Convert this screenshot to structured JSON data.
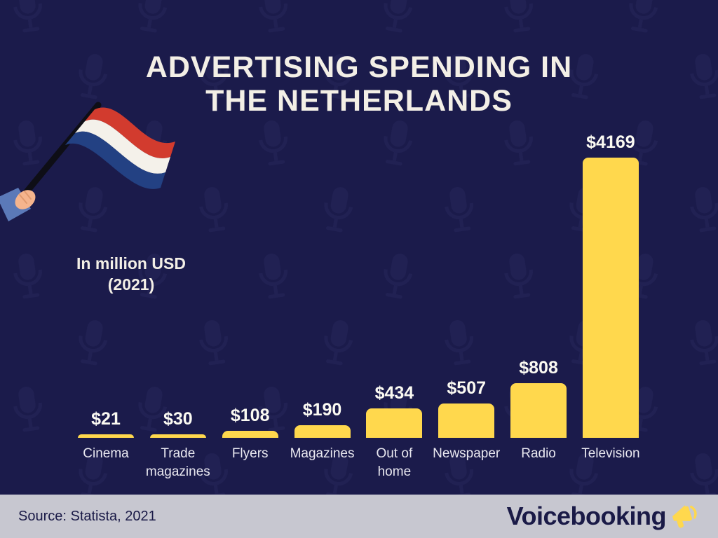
{
  "page": {
    "title_line1": "ADVERTISING SPENDING IN",
    "title_line2": "THE NETHERLANDS",
    "subtitle_line1": "In million USD",
    "subtitle_line2": "(2021)"
  },
  "chart_data": {
    "type": "bar",
    "title": "Advertising spending in the Netherlands",
    "unit": "million USD",
    "year": "2021",
    "categories": [
      "Cinema",
      "Trade magazines",
      "Flyers",
      "Magazines",
      "Out of home",
      "Newspaper",
      "Radio",
      "Television"
    ],
    "values": [
      21,
      30,
      108,
      190,
      434,
      507,
      808,
      4169
    ],
    "value_labels": [
      "$21",
      "$30",
      "$108",
      "$190",
      "$434",
      "$507",
      "$808",
      "$4169"
    ],
    "ylim": [
      0,
      4169
    ],
    "bar_color": "#FFD84D",
    "grid": false,
    "legend": false
  },
  "footer": {
    "source": "Source: Statista, 2021",
    "brand": "Voicebooking"
  },
  "icons": {
    "flag_icon": "netherlands-flag",
    "brand_icon": "megaphone",
    "pattern_icon": "microphone"
  },
  "colors": {
    "background": "#1B1B4B",
    "bar": "#FFD84D",
    "title_text": "#F3EFE6",
    "category_text": "#E9E8F0",
    "footer_background": "#C7C7D0",
    "footer_text": "#1A1A47",
    "flag_red": "#D23B2E",
    "flag_white": "#F4F1EA",
    "flag_blue": "#234183"
  }
}
